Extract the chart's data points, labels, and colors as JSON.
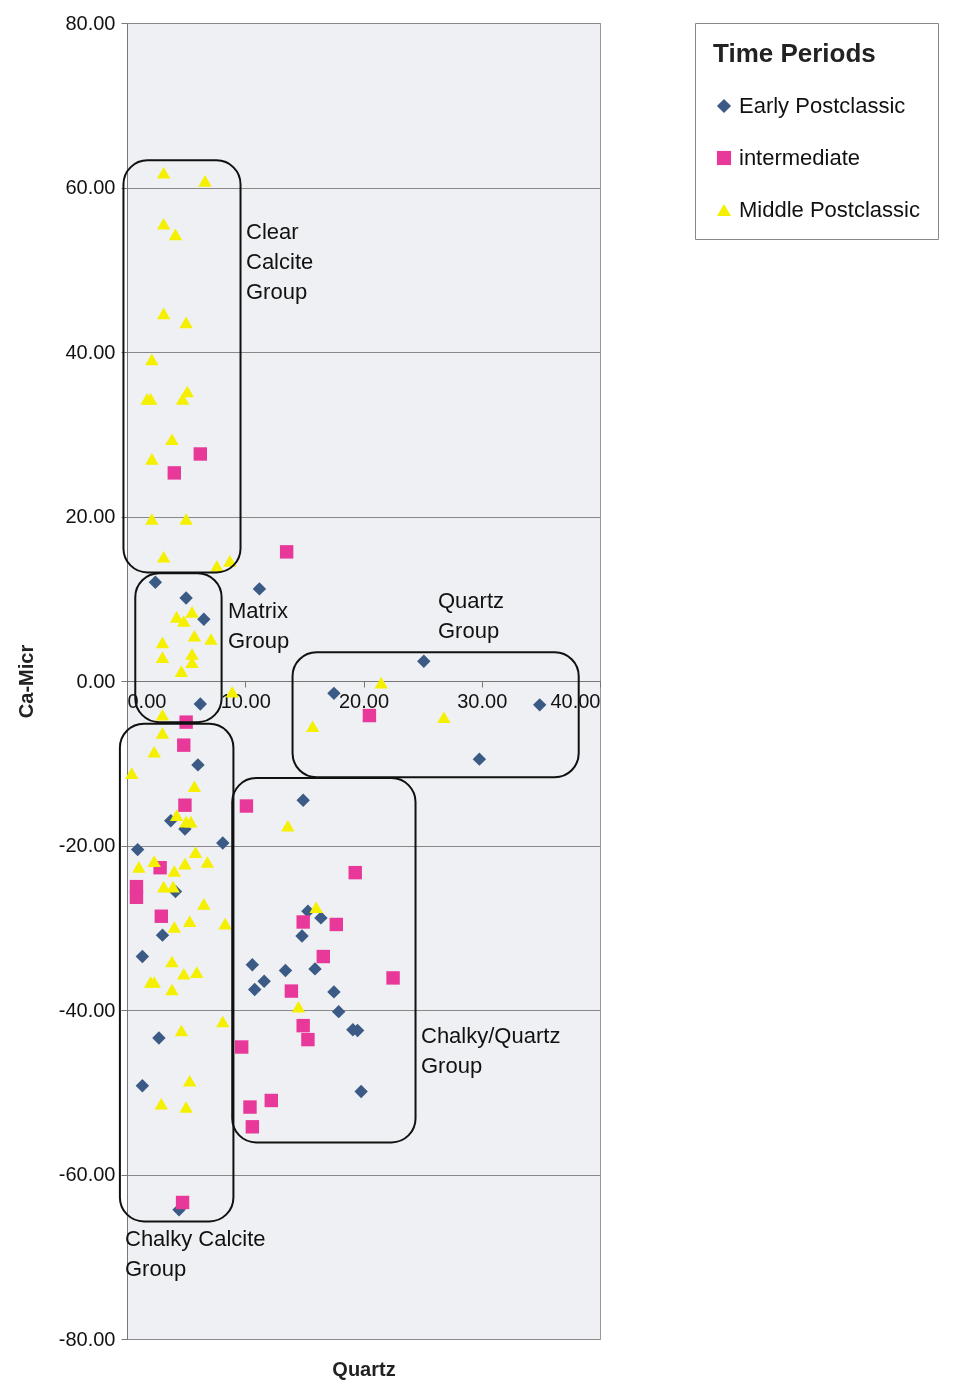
{
  "chart_data": {
    "type": "scatter",
    "xlabel": "Quartz",
    "ylabel": "Ca-Micr",
    "legend_title": "Time Periods",
    "legend": "right",
    "grid": "y",
    "xlim": [
      0,
      40
    ],
    "xticks": [
      {
        "value": 0,
        "label": "0.00"
      },
      {
        "value": 10,
        "label": "10.00"
      },
      {
        "value": 20,
        "label": "20.00"
      },
      {
        "value": 30,
        "label": "30.00"
      },
      {
        "value": 40,
        "label": "40.00"
      }
    ],
    "ylim": [
      -80,
      80
    ],
    "yticks": [
      {
        "value": -80,
        "label": "-80.00"
      },
      {
        "value": -60,
        "label": "-60.00"
      },
      {
        "value": -40,
        "label": "-40.00"
      },
      {
        "value": -20,
        "label": "-20.00"
      },
      {
        "value": 0,
        "label": "0.00"
      },
      {
        "value": 20,
        "label": "20.00"
      },
      {
        "value": 40,
        "label": "40.00"
      },
      {
        "value": 60,
        "label": "60.00"
      },
      {
        "value": 80,
        "label": "80.00"
      }
    ],
    "series": [
      {
        "name": "Early Postclassic",
        "color": "#3b5a85",
        "marker": "diamond",
        "x": [
          2.4,
          5.0,
          6.5,
          11.2,
          6.2,
          17.5,
          25.1,
          34.9,
          29.8,
          6.0,
          3.7,
          4.9,
          8.1,
          0.9,
          4.1,
          3.0,
          1.3,
          2.7,
          1.3,
          4.4,
          14.9,
          15.3,
          16.4,
          14.8,
          10.6,
          10.8,
          11.6,
          13.4,
          15.9,
          17.5,
          17.9,
          19.1,
          19.5,
          19.8
        ],
        "values": [
          12.0,
          10.1,
          7.5,
          11.2,
          -2.8,
          -1.5,
          2.4,
          -2.9,
          -9.5,
          -10.2,
          -17.0,
          -18.0,
          -19.7,
          -20.5,
          -25.6,
          -30.9,
          -33.5,
          -43.4,
          -49.2,
          -64.3,
          -14.5,
          -28.0,
          -28.8,
          -31.0,
          -34.5,
          -37.5,
          -36.5,
          -35.2,
          -35.0,
          -37.8,
          -40.2,
          -42.4,
          -42.5,
          -49.9
        ]
      },
      {
        "name": "intermediate",
        "color": "#e8399a",
        "marker": "square",
        "x": [
          6.2,
          4.0,
          13.5,
          20.5,
          5.0,
          4.8,
          4.9,
          2.8,
          0.8,
          0.8,
          2.9,
          10.1,
          19.3,
          14.9,
          17.7,
          16.6,
          13.9,
          14.9,
          15.3,
          22.5,
          9.7,
          12.2,
          10.4,
          10.6,
          4.7
        ],
        "values": [
          27.6,
          25.3,
          15.7,
          -4.2,
          -5.0,
          -7.8,
          -15.1,
          -22.7,
          -25.0,
          -26.3,
          -28.6,
          -15.2,
          -23.3,
          -29.3,
          -29.6,
          -33.5,
          -37.7,
          -41.9,
          -43.6,
          -36.1,
          -44.5,
          -51.0,
          -51.8,
          -54.2,
          -63.4
        ]
      },
      {
        "name": "Middle Postclassic",
        "color": "#f5f000",
        "marker": "triangle",
        "x": [
          3.1,
          6.6,
          3.1,
          4.1,
          3.1,
          5.0,
          2.1,
          1.7,
          2.0,
          5.1,
          4.7,
          3.8,
          2.1,
          2.1,
          5.0,
          3.1,
          7.6,
          8.7,
          4.2,
          5.5,
          4.8,
          5.7,
          7.1,
          3.0,
          3.0,
          5.5,
          5.5,
          4.6,
          8.9,
          3.0,
          3.0,
          2.3,
          0.4,
          5.7,
          4.2,
          5.0,
          5.4,
          13.6,
          15.7,
          21.5,
          26.8,
          5.8,
          2.3,
          1.0,
          6.8,
          4.0,
          4.9,
          3.1,
          3.9,
          6.5,
          5.3,
          4.0,
          8.3,
          16.0,
          3.8,
          4.8,
          5.9,
          2.0,
          2.3,
          3.8,
          14.5,
          4.6,
          8.1,
          5.3,
          2.9,
          5.0
        ],
        "values": [
          61.8,
          60.8,
          55.6,
          54.3,
          44.7,
          43.6,
          39.1,
          34.3,
          34.3,
          35.2,
          34.3,
          29.4,
          27.0,
          19.7,
          19.7,
          15.1,
          14.0,
          14.6,
          7.8,
          8.4,
          7.3,
          5.5,
          5.1,
          4.7,
          2.9,
          3.3,
          2.3,
          1.2,
          -1.3,
          -4.1,
          -6.3,
          -8.6,
          -11.2,
          -12.8,
          -16.3,
          -17.1,
          -17.1,
          -17.6,
          -5.5,
          -0.2,
          -4.4,
          -20.8,
          -21.9,
          -22.6,
          -22.0,
          -23.1,
          -22.2,
          -25.0,
          -25.0,
          -27.1,
          -29.2,
          -29.9,
          -29.5,
          -27.5,
          -34.1,
          -35.6,
          -35.4,
          -36.6,
          -36.6,
          -37.5,
          -39.6,
          -42.5,
          -41.4,
          -48.6,
          -51.4,
          -51.8
        ]
      }
    ],
    "annotations": [
      "Clear\nCalcite\nGroup",
      "Matrix\nGroup",
      "Quartz\nGroup",
      "Chalky/Quartz\nGroup",
      "Chalky Calcite\nGroup"
    ]
  }
}
